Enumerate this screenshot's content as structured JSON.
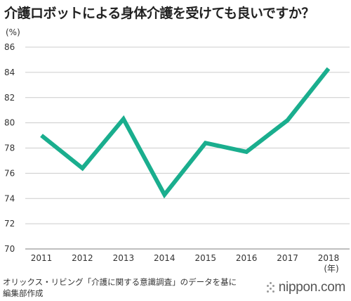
{
  "title": "介護ロボットによる身体介護を受けても良いですか？",
  "source_line1": "オリックス・リビング「介護に関する意識調査」のデータを基に",
  "source_line2": "編集部作成",
  "brand": "nippon.com",
  "colors": {
    "line": "#1aae8e",
    "grid": "#cccccc",
    "axis": "#999999",
    "text": "#333333"
  },
  "chart_data": {
    "type": "line",
    "title": "介護ロボットによる身体介護を受けても良いですか？",
    "y_unit_label": "(%)",
    "x_unit_label": "(年)",
    "ylim": [
      70,
      86
    ],
    "y_ticks": [
      70,
      72,
      74,
      76,
      78,
      80,
      82,
      84,
      86
    ],
    "grid": true,
    "x": [
      "2011",
      "2012",
      "2013",
      "2014",
      "2015",
      "2016",
      "2017",
      "2018"
    ],
    "series": [
      {
        "values": [
          79.0,
          76.4,
          80.3,
          74.3,
          78.4,
          77.7,
          80.2,
          84.3
        ]
      }
    ]
  }
}
